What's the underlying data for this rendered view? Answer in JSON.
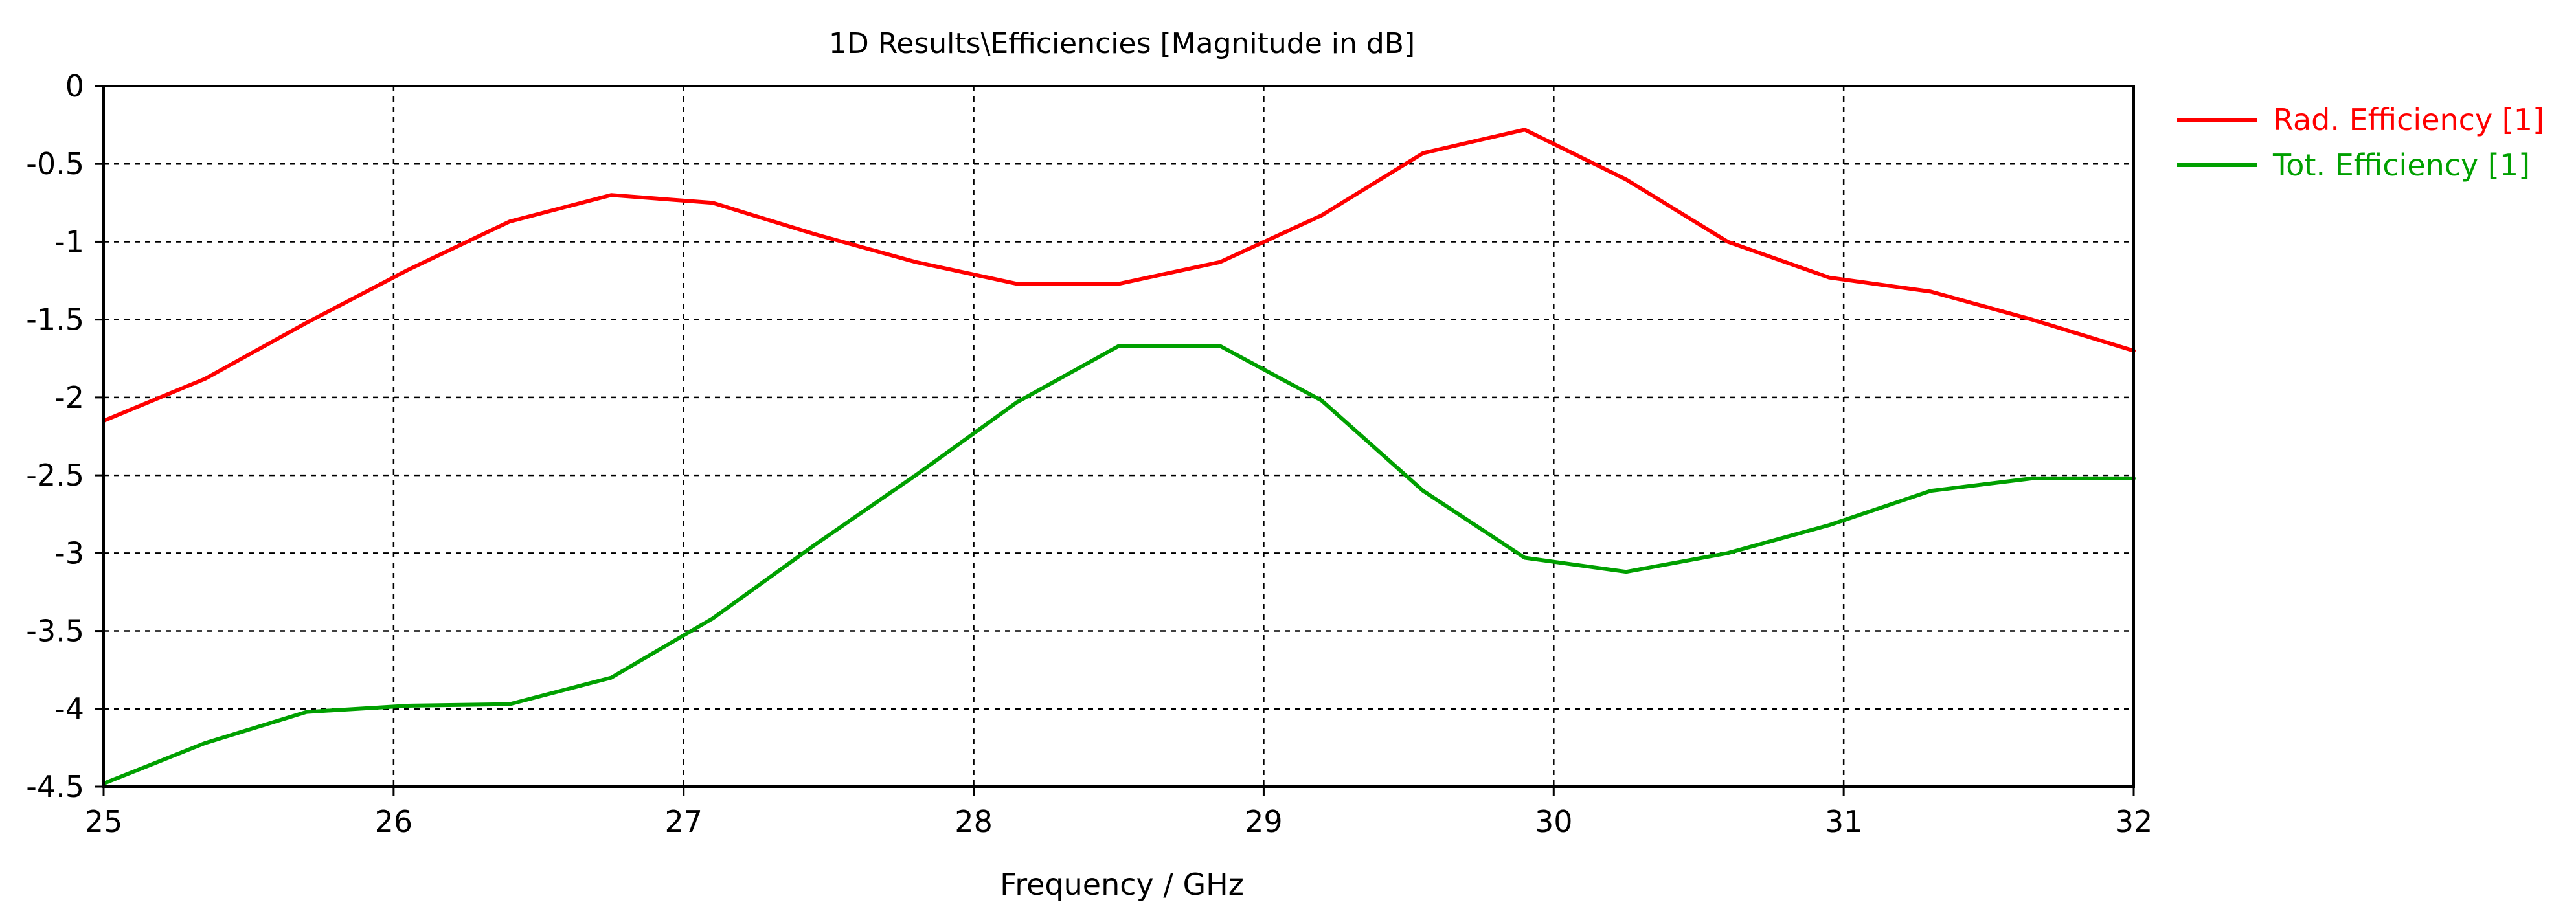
{
  "chart_data": {
    "type": "line",
    "title": "1D Results\\Efficiencies [Magnitude in dB]",
    "xlabel": "Frequency / GHz",
    "ylabel": "",
    "xlim": [
      25,
      32
    ],
    "ylim": [
      -4.5,
      0
    ],
    "xticks": [
      25,
      26,
      27,
      28,
      29,
      30,
      31,
      32
    ],
    "yticks": [
      0,
      -0.5,
      -1,
      -1.5,
      -2,
      -2.5,
      -3,
      -3.5,
      -4,
      -4.5
    ],
    "ytick_labels": [
      "0",
      "-0.5",
      "-1",
      "-1.5",
      "-2",
      "-2.5",
      "-3",
      "-3.5",
      "-4",
      "-4.5"
    ],
    "grid": true,
    "legend_position": "top-right outside",
    "series": [
      {
        "name": "Rad. Efficiency [1]",
        "color": "#ff0000",
        "x": [
          25,
          25.35,
          25.7,
          26.05,
          26.4,
          26.75,
          27.1,
          27.45,
          27.8,
          28.15,
          28.5,
          28.85,
          29.2,
          29.55,
          29.9,
          30.25,
          30.6,
          30.95,
          31.3,
          31.65,
          32
        ],
        "y": [
          -2.15,
          -1.88,
          -1.52,
          -1.18,
          -0.87,
          -0.7,
          -0.75,
          -0.95,
          -1.13,
          -1.27,
          -1.27,
          -1.13,
          -0.83,
          -0.43,
          -0.28,
          -0.6,
          -1.0,
          -1.23,
          -1.32,
          -1.5,
          -1.7
        ]
      },
      {
        "name": "Tot. Efficiency [1]",
        "color": "#00a000",
        "x": [
          25,
          25.35,
          25.7,
          26.05,
          26.4,
          26.75,
          27.1,
          27.45,
          27.8,
          28.15,
          28.5,
          28.85,
          29.2,
          29.55,
          29.9,
          30.25,
          30.6,
          30.95,
          31.3,
          31.65,
          32
        ],
        "y": [
          -4.48,
          -4.22,
          -4.02,
          -3.98,
          -3.97,
          -3.8,
          -3.42,
          -2.95,
          -2.5,
          -2.03,
          -1.67,
          -1.67,
          -2.02,
          -2.6,
          -3.03,
          -3.12,
          -3.0,
          -2.82,
          -2.6,
          -2.52,
          -2.52
        ]
      }
    ]
  }
}
